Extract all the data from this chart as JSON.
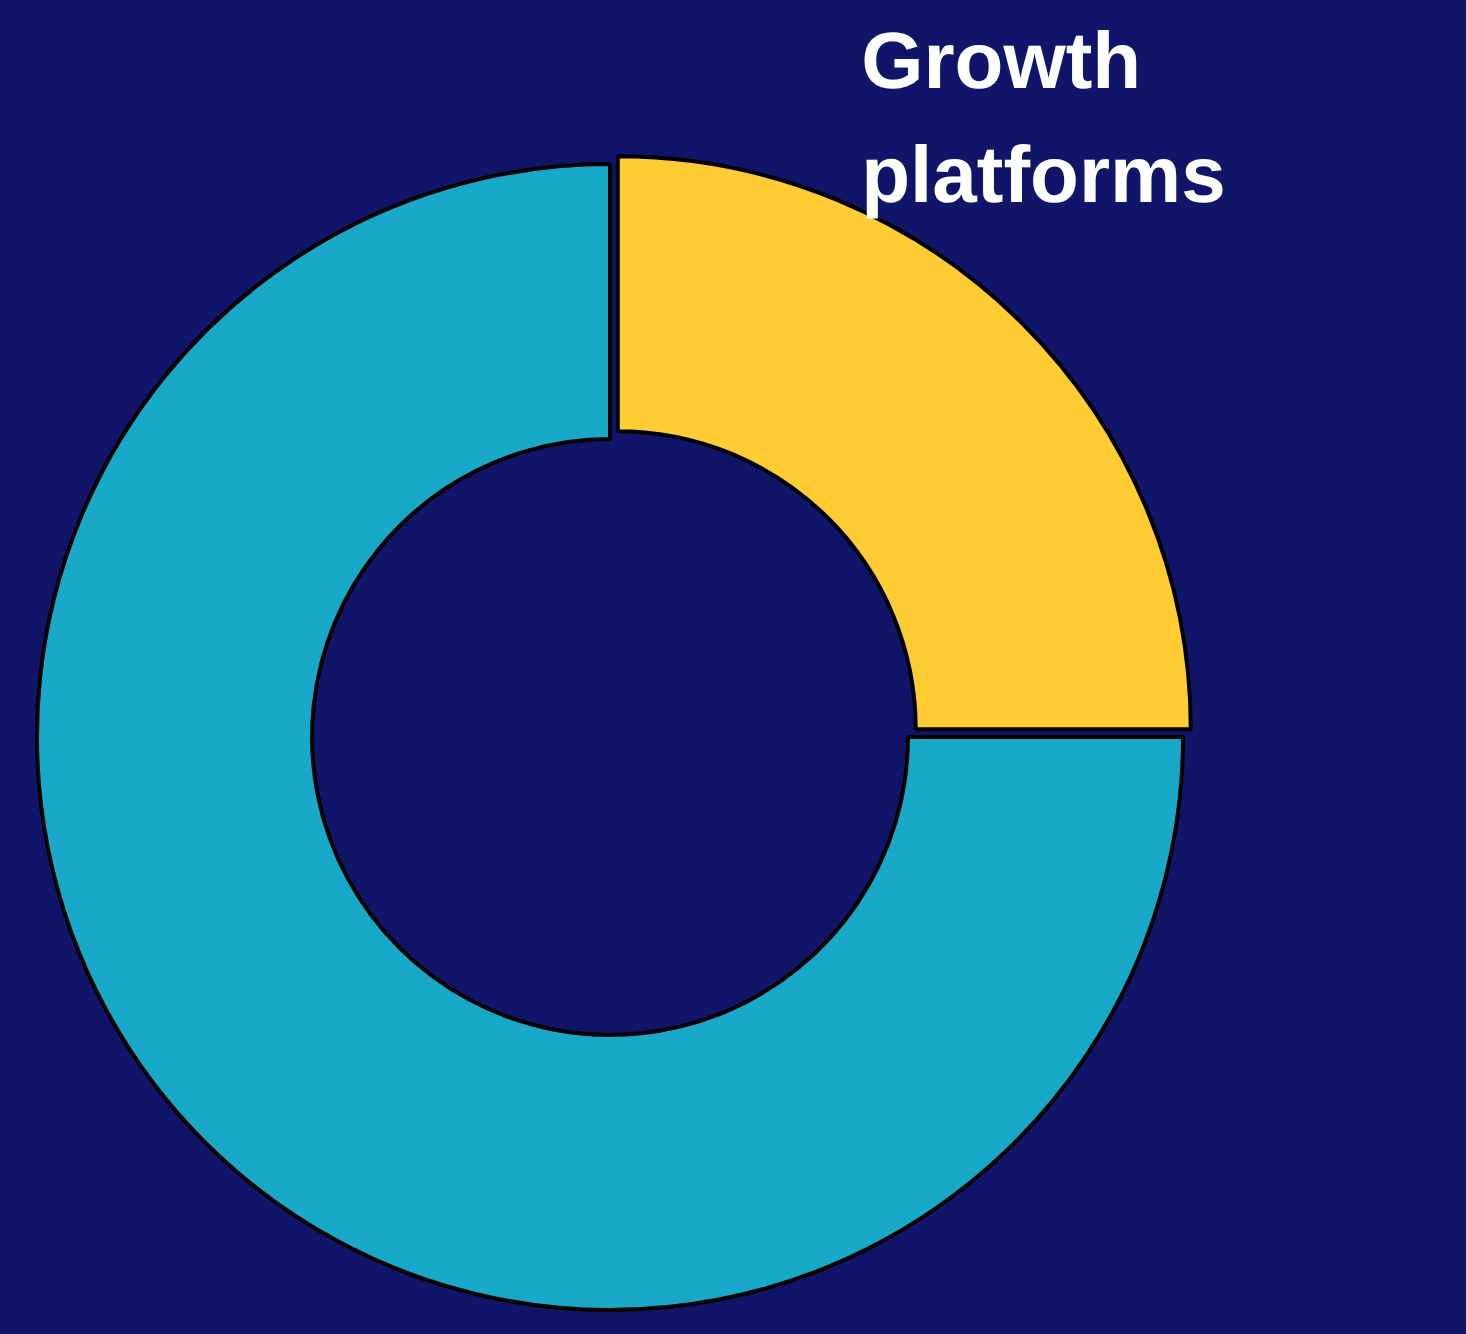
{
  "chart_data": {
    "type": "donut",
    "categories": [
      "Growth platforms",
      null
    ],
    "values": [
      25,
      75
    ],
    "colors": [
      "#ffcc33",
      "#18a8c8"
    ],
    "legend": false
  }
}
